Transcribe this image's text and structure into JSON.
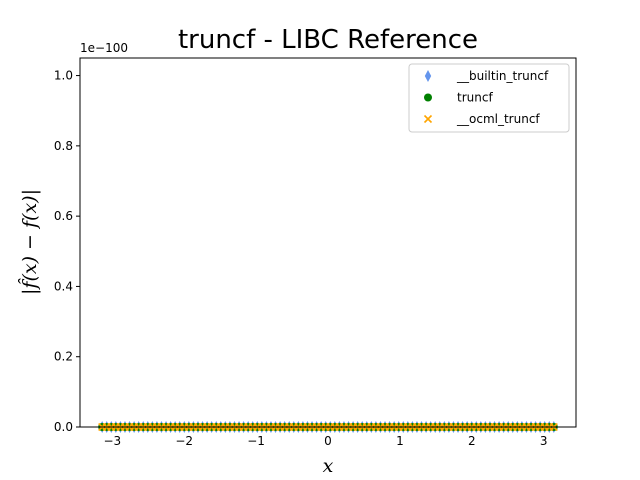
{
  "chart_data": {
    "type": "scatter",
    "title": "truncf - LIBC Reference",
    "xlabel": "x",
    "ylabel": "|f̂(x) − f(x)|",
    "offset_text": "1e−100",
    "xlim": [
      -3.45,
      3.45
    ],
    "ylim": [
      0,
      1.05
    ],
    "x_ticks": [
      -3,
      -2,
      -1,
      0,
      1,
      2,
      3
    ],
    "x_tick_labels": [
      "−3",
      "−2",
      "−1",
      "0",
      "1",
      "2",
      "3"
    ],
    "y_ticks": [
      0.0,
      0.2,
      0.4,
      0.6,
      0.8,
      1.0
    ],
    "y_tick_labels": [
      "0.0",
      "0.2",
      "0.4",
      "0.6",
      "0.8",
      "1.0"
    ],
    "x_range": [
      -3.14159,
      3.14159
    ],
    "point_count": 100,
    "legend_position": "top-right",
    "series": [
      {
        "name": "__builtin_truncf",
        "marker": "diamond",
        "color": "#6495ed",
        "y_value": 0
      },
      {
        "name": "truncf",
        "marker": "circle",
        "color": "#008000",
        "y_value": 0
      },
      {
        "name": "__ocml_truncf",
        "marker": "x",
        "color": "#ffa500",
        "y_value": 0
      }
    ]
  }
}
